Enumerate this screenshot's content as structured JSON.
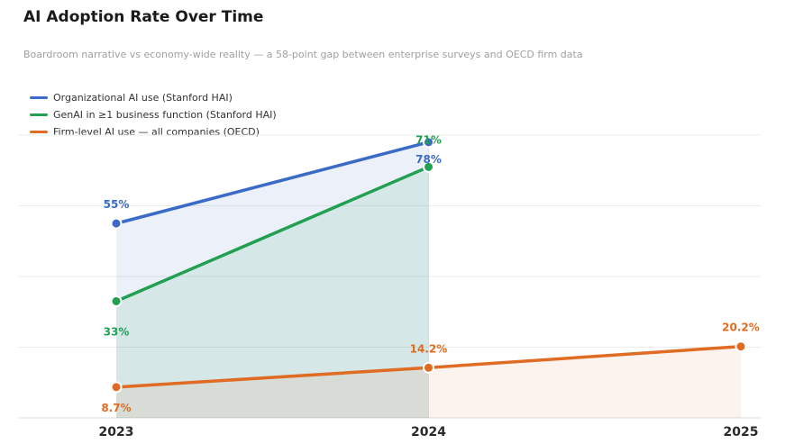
{
  "title": "AI Adoption Rate Over Time",
  "subtitle": "Boardroom narrative vs economy-wide reality — a 58-point gap between enterprise surveys and OECD firm data",
  "chart_data": {
    "type": "line",
    "x": [
      "2023",
      "2024",
      "2025"
    ],
    "ylim": [
      0,
      80
    ],
    "grid": true,
    "legend_position": "top-left",
    "series": [
      {
        "name": "Organizational AI use (Stanford HAI)",
        "color": "#3a6bc7",
        "values": [
          55,
          78,
          null
        ],
        "labels": [
          "55%",
          "78%",
          null
        ]
      },
      {
        "name": "GenAI in ≥1 business function (Stanford HAI)",
        "color": "#22a052",
        "values": [
          33,
          71,
          null
        ],
        "labels": [
          "33%",
          "71%",
          null
        ]
      },
      {
        "name": "Firm-level AI use — all companies (OECD)",
        "color": "#e06c23",
        "values": [
          8.7,
          14.2,
          20.2
        ],
        "labels": [
          "8.7%",
          "14.2%",
          "20.2%"
        ]
      }
    ]
  }
}
